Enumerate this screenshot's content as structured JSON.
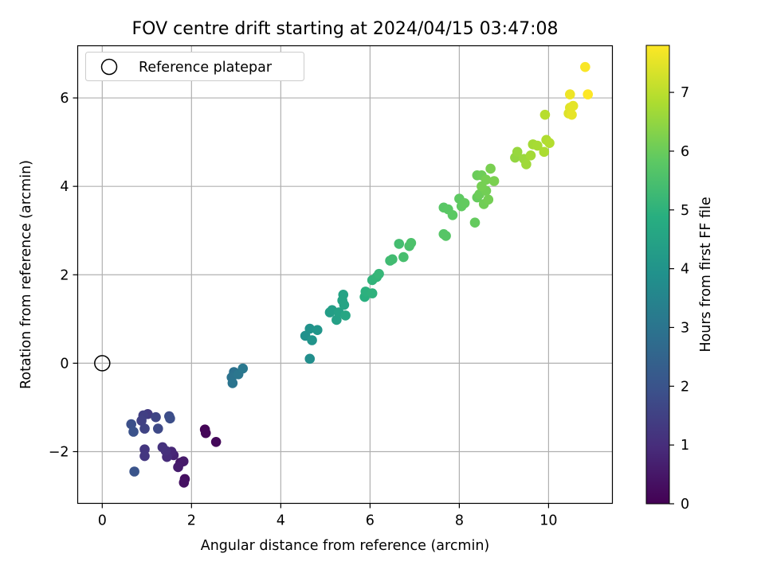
{
  "chart_data": {
    "type": "scatter",
    "title": "FOV centre drift starting at 2024/04/15 03:47:08",
    "xlabel": "Angular distance from reference (arcmin)",
    "ylabel": "Rotation from reference (arcmin)",
    "xlim": [
      -0.55,
      11.43
    ],
    "ylim": [
      -3.17,
      7.18
    ],
    "xticks": [
      0,
      2,
      4,
      6,
      8,
      10
    ],
    "yticks": [
      -2,
      0,
      2,
      4,
      6
    ],
    "xtick_labels": [
      "0",
      "2",
      "4",
      "6",
      "8",
      "10"
    ],
    "ytick_labels": [
      "−2",
      "0",
      "2",
      "4",
      "6"
    ],
    "grid": true,
    "legend": {
      "placement": "top-left",
      "entries": [
        {
          "label": "Reference platepar",
          "marker": "open-circle"
        }
      ]
    },
    "reference_point": {
      "x": 0,
      "y": 0
    },
    "colorbar": {
      "label": "Hours from first FF file",
      "range": [
        0,
        7.8
      ],
      "ticks": [
        0,
        1,
        2,
        3,
        4,
        5,
        6,
        7
      ],
      "tick_labels": [
        "0",
        "1",
        "2",
        "3",
        "4",
        "5",
        "6",
        "7"
      ],
      "colormap": "viridis"
    },
    "points": [
      {
        "x": 2.3,
        "y": -1.5,
        "t": 0.05
      },
      {
        "x": 2.32,
        "y": -1.58,
        "t": 0.1
      },
      {
        "x": 2.55,
        "y": -1.78,
        "t": 0.15
      },
      {
        "x": 1.85,
        "y": -2.62,
        "t": 0.3
      },
      {
        "x": 1.83,
        "y": -2.7,
        "t": 0.35
      },
      {
        "x": 1.75,
        "y": -2.25,
        "t": 0.5
      },
      {
        "x": 1.82,
        "y": -2.22,
        "t": 0.55
      },
      {
        "x": 1.7,
        "y": -2.35,
        "t": 0.6
      },
      {
        "x": 1.6,
        "y": -2.08,
        "t": 0.75
      },
      {
        "x": 1.55,
        "y": -2.0,
        "t": 0.85
      },
      {
        "x": 1.45,
        "y": -2.12,
        "t": 0.95
      },
      {
        "x": 1.42,
        "y": -1.98,
        "t": 1.05
      },
      {
        "x": 1.35,
        "y": -1.9,
        "t": 1.1
      },
      {
        "x": 0.95,
        "y": -1.95,
        "t": 1.2
      },
      {
        "x": 0.95,
        "y": -2.1,
        "t": 1.25
      },
      {
        "x": 1.02,
        "y": -1.15,
        "t": 1.35
      },
      {
        "x": 0.92,
        "y": -1.18,
        "t": 1.45
      },
      {
        "x": 0.88,
        "y": -1.3,
        "t": 1.5
      },
      {
        "x": 0.95,
        "y": -1.48,
        "t": 1.55
      },
      {
        "x": 1.2,
        "y": -1.22,
        "t": 1.6
      },
      {
        "x": 1.25,
        "y": -1.48,
        "t": 1.7
      },
      {
        "x": 1.5,
        "y": -1.2,
        "t": 1.8
      },
      {
        "x": 1.52,
        "y": -1.25,
        "t": 1.85
      },
      {
        "x": 0.65,
        "y": -1.38,
        "t": 1.9
      },
      {
        "x": 0.7,
        "y": -1.55,
        "t": 1.95
      },
      {
        "x": 0.72,
        "y": -2.45,
        "t": 2.0
      },
      {
        "x": 2.95,
        "y": -0.2,
        "t": 2.9
      },
      {
        "x": 2.9,
        "y": -0.32,
        "t": 2.95
      },
      {
        "x": 2.92,
        "y": -0.45,
        "t": 3.0
      },
      {
        "x": 3.05,
        "y": -0.25,
        "t": 3.05
      },
      {
        "x": 3.15,
        "y": -0.12,
        "t": 3.1
      },
      {
        "x": 4.65,
        "y": 0.1,
        "t": 3.8
      },
      {
        "x": 4.55,
        "y": 0.62,
        "t": 3.9
      },
      {
        "x": 4.65,
        "y": 0.78,
        "t": 3.95
      },
      {
        "x": 4.7,
        "y": 0.52,
        "t": 4.0
      },
      {
        "x": 4.82,
        "y": 0.75,
        "t": 4.05
      },
      {
        "x": 5.1,
        "y": 1.15,
        "t": 4.3
      },
      {
        "x": 5.15,
        "y": 1.2,
        "t": 4.35
      },
      {
        "x": 5.25,
        "y": 0.98,
        "t": 4.4
      },
      {
        "x": 5.3,
        "y": 1.15,
        "t": 4.45
      },
      {
        "x": 5.4,
        "y": 1.55,
        "t": 4.5
      },
      {
        "x": 5.38,
        "y": 1.42,
        "t": 4.52
      },
      {
        "x": 5.42,
        "y": 1.32,
        "t": 4.55
      },
      {
        "x": 5.45,
        "y": 1.08,
        "t": 4.6
      },
      {
        "x": 5.88,
        "y": 1.5,
        "t": 4.9
      },
      {
        "x": 5.9,
        "y": 1.62,
        "t": 4.95
      },
      {
        "x": 6.05,
        "y": 1.58,
        "t": 5.0
      },
      {
        "x": 6.05,
        "y": 1.88,
        "t": 5.05
      },
      {
        "x": 6.15,
        "y": 1.95,
        "t": 5.1
      },
      {
        "x": 6.2,
        "y": 2.02,
        "t": 5.15
      },
      {
        "x": 6.45,
        "y": 2.32,
        "t": 5.3
      },
      {
        "x": 6.5,
        "y": 2.35,
        "t": 5.35
      },
      {
        "x": 6.65,
        "y": 2.7,
        "t": 5.4
      },
      {
        "x": 6.75,
        "y": 2.4,
        "t": 5.45
      },
      {
        "x": 6.88,
        "y": 2.65,
        "t": 5.5
      },
      {
        "x": 6.92,
        "y": 2.72,
        "t": 5.55
      },
      {
        "x": 7.65,
        "y": 2.92,
        "t": 5.7
      },
      {
        "x": 7.7,
        "y": 2.88,
        "t": 5.72
      },
      {
        "x": 7.65,
        "y": 3.52,
        "t": 5.75
      },
      {
        "x": 7.75,
        "y": 3.48,
        "t": 5.78
      },
      {
        "x": 7.85,
        "y": 3.35,
        "t": 5.8
      },
      {
        "x": 8.0,
        "y": 3.72,
        "t": 5.85
      },
      {
        "x": 8.05,
        "y": 3.55,
        "t": 5.88
      },
      {
        "x": 8.12,
        "y": 3.62,
        "t": 5.9
      },
      {
        "x": 8.35,
        "y": 3.18,
        "t": 5.92
      },
      {
        "x": 8.4,
        "y": 3.75,
        "t": 5.95
      },
      {
        "x": 8.4,
        "y": 4.25,
        "t": 6.0
      },
      {
        "x": 8.45,
        "y": 3.82,
        "t": 6.02
      },
      {
        "x": 8.5,
        "y": 4.25,
        "t": 6.05
      },
      {
        "x": 8.55,
        "y": 3.6,
        "t": 6.08
      },
      {
        "x": 8.6,
        "y": 3.9,
        "t": 6.1
      },
      {
        "x": 8.65,
        "y": 3.7,
        "t": 6.12
      },
      {
        "x": 8.5,
        "y": 4.0,
        "t": 6.14
      },
      {
        "x": 8.6,
        "y": 4.15,
        "t": 6.15
      },
      {
        "x": 8.7,
        "y": 4.4,
        "t": 6.18
      },
      {
        "x": 8.78,
        "y": 4.12,
        "t": 6.2
      },
      {
        "x": 9.25,
        "y": 4.65,
        "t": 6.5
      },
      {
        "x": 9.3,
        "y": 4.78,
        "t": 6.55
      },
      {
        "x": 9.45,
        "y": 4.62,
        "t": 6.6
      },
      {
        "x": 9.5,
        "y": 4.5,
        "t": 6.65
      },
      {
        "x": 9.6,
        "y": 4.7,
        "t": 6.7
      },
      {
        "x": 9.65,
        "y": 4.95,
        "t": 6.72
      },
      {
        "x": 9.75,
        "y": 4.92,
        "t": 6.75
      },
      {
        "x": 9.9,
        "y": 4.78,
        "t": 6.8
      },
      {
        "x": 9.95,
        "y": 5.05,
        "t": 6.85
      },
      {
        "x": 10.02,
        "y": 4.98,
        "t": 6.9
      },
      {
        "x": 9.92,
        "y": 5.62,
        "t": 6.95
      },
      {
        "x": 10.45,
        "y": 5.65,
        "t": 7.4
      },
      {
        "x": 10.48,
        "y": 5.78,
        "t": 7.45
      },
      {
        "x": 10.55,
        "y": 5.82,
        "t": 7.5
      },
      {
        "x": 10.52,
        "y": 5.62,
        "t": 7.52
      },
      {
        "x": 10.48,
        "y": 6.08,
        "t": 7.6
      },
      {
        "x": 10.82,
        "y": 6.7,
        "t": 7.75
      },
      {
        "x": 10.88,
        "y": 6.08,
        "t": 7.8
      }
    ]
  }
}
